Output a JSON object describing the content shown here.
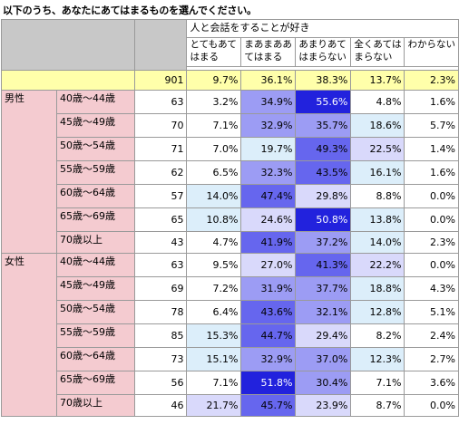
{
  "title": "以下のうち、あなたにあてはまるものを選んでください。",
  "question": "人と会話をすることが好き",
  "columns": [
    {
      "line1": "とてもあて",
      "line2": "はまる"
    },
    {
      "line1": "まあまああ",
      "line2": "てはまる"
    },
    {
      "line1": "あまりあて",
      "line2": "はまらない"
    },
    {
      "line1": "全くあては",
      "line2": "まらない"
    },
    {
      "line1": "わからない",
      "line2": ""
    }
  ],
  "total": {
    "n": "901",
    "values": [
      "9.7%",
      "36.1%",
      "38.3%",
      "13.7%",
      "2.3%"
    ]
  },
  "groups": [
    {
      "gender": "男性",
      "rows": [
        {
          "age": "40歳～44歳",
          "n": "63",
          "values": [
            "3.2%",
            "34.9%",
            "55.6%",
            "4.8%",
            "1.6%"
          ]
        },
        {
          "age": "45歳～49歳",
          "n": "70",
          "values": [
            "7.1%",
            "32.9%",
            "35.7%",
            "18.6%",
            "5.7%"
          ]
        },
        {
          "age": "50歳～54歳",
          "n": "71",
          "values": [
            "7.0%",
            "19.7%",
            "49.3%",
            "22.5%",
            "1.4%"
          ]
        },
        {
          "age": "55歳～59歳",
          "n": "62",
          "values": [
            "6.5%",
            "32.3%",
            "43.5%",
            "16.1%",
            "1.6%"
          ]
        },
        {
          "age": "60歳～64歳",
          "n": "57",
          "values": [
            "14.0%",
            "47.4%",
            "29.8%",
            "8.8%",
            "0.0%"
          ]
        },
        {
          "age": "65歳～69歳",
          "n": "65",
          "values": [
            "10.8%",
            "24.6%",
            "50.8%",
            "13.8%",
            "0.0%"
          ]
        },
        {
          "age": "70歳以上",
          "n": "43",
          "values": [
            "4.7%",
            "41.9%",
            "37.2%",
            "14.0%",
            "2.3%"
          ]
        }
      ]
    },
    {
      "gender": "女性",
      "rows": [
        {
          "age": "40歳～44歳",
          "n": "63",
          "values": [
            "9.5%",
            "27.0%",
            "41.3%",
            "22.2%",
            "0.0%"
          ]
        },
        {
          "age": "45歳～49歳",
          "n": "69",
          "values": [
            "7.2%",
            "31.9%",
            "37.7%",
            "18.8%",
            "4.3%"
          ]
        },
        {
          "age": "50歳～54歳",
          "n": "78",
          "values": [
            "6.4%",
            "43.6%",
            "32.1%",
            "12.8%",
            "5.1%"
          ]
        },
        {
          "age": "55歳～59歳",
          "n": "85",
          "values": [
            "15.3%",
            "44.7%",
            "29.4%",
            "8.2%",
            "2.4%"
          ]
        },
        {
          "age": "60歳～64歳",
          "n": "73",
          "values": [
            "15.1%",
            "32.9%",
            "37.0%",
            "12.3%",
            "2.7%"
          ]
        },
        {
          "age": "65歳～69歳",
          "n": "56",
          "values": [
            "7.1%",
            "51.8%",
            "30.4%",
            "7.1%",
            "3.6%"
          ]
        },
        {
          "age": "70歳以上",
          "n": "46",
          "values": [
            "21.7%",
            "45.7%",
            "23.9%",
            "8.7%",
            "0.0%"
          ]
        }
      ]
    }
  ],
  "colors": {
    "header_gray": "#c8c8c8",
    "total_row": "#ffffaa",
    "group_label": "#f4cbd0",
    "scale": [
      "#ffffff",
      "#dceefa",
      "#d9d9fb",
      "#9c9cf4",
      "#6666ee",
      "#2222dd"
    ]
  }
}
